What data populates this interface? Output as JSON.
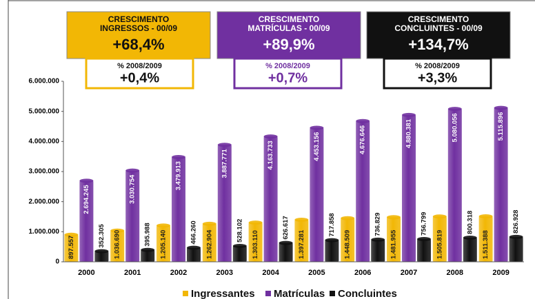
{
  "chart_data": {
    "type": "bar",
    "categories": [
      "2000",
      "2001",
      "2002",
      "2003",
      "2004",
      "2005",
      "2006",
      "2007",
      "2008",
      "2009"
    ],
    "series": [
      {
        "name": "Ingressantes",
        "color": "#f2b705",
        "values": [
          897557,
          1036690,
          1205140,
          1262904,
          1303110,
          1397281,
          1448509,
          1481955,
          1505819,
          1511388
        ],
        "value_labels": [
          "897.557",
          "1.036.690",
          "1.205.140",
          "1.262.904",
          "1.303.110",
          "1.397.281",
          "1.448.509",
          "1.481.955",
          "1.505.819",
          "1.511.388"
        ]
      },
      {
        "name": "Matrículas",
        "color": "#7030a0",
        "values": [
          2694245,
          3030754,
          3479913,
          3887771,
          4163733,
          4453156,
          4676646,
          4880381,
          5080056,
          5115896
        ],
        "value_labels": [
          "2.694.245",
          "3.030.754",
          "3.479.913",
          "3.887.771",
          "4.163.733",
          "4.453.156",
          "4.676.646",
          "4.880.381",
          "5.080.056",
          "5.115.896"
        ]
      },
      {
        "name": "Concluintes",
        "color": "#111111",
        "values": [
          352305,
          395988,
          466260,
          528102,
          626617,
          717858,
          736829,
          756799,
          800318,
          826928
        ],
        "value_labels": [
          "352.305",
          "395.988",
          "466.260",
          "528.102",
          "626.617",
          "717.858",
          "736.829",
          "756.799",
          "800.318",
          "826.928"
        ]
      }
    ],
    "ylim": [
      0,
      6000000
    ],
    "yticks": [
      0,
      {
        "value": 1000000,
        "label": "1.000.000"
      },
      {
        "value": 2000000,
        "label": "2.000.000"
      },
      {
        "value": 3000000,
        "label": "3.000.000"
      },
      {
        "value": 4000000,
        "label": "4.000.000"
      },
      {
        "value": 5000000,
        "label": "5.000.000"
      },
      {
        "value": 6000000,
        "label": "6.000.000"
      }
    ],
    "growth_boxes": [
      {
        "lines": [
          "CRESCIMENTO",
          "INGRESSOS - 00/09"
        ],
        "value": "+68,4%"
      },
      {
        "lines": [
          "CRESCIMENTO",
          "MATRÍCULAS - 00/09"
        ],
        "value": "+89,9%"
      },
      {
        "lines": [
          "CRESCIMENTO",
          "CONCLUINTES - 00/09"
        ],
        "value": "+134,7%"
      }
    ],
    "yearly_boxes": [
      {
        "label": "% 2008/2009",
        "value": "+0,4%"
      },
      {
        "label": "% 2008/2009",
        "value": "+0,7%"
      },
      {
        "label": "% 2008/2009",
        "value": "+3,3%"
      }
    ]
  }
}
